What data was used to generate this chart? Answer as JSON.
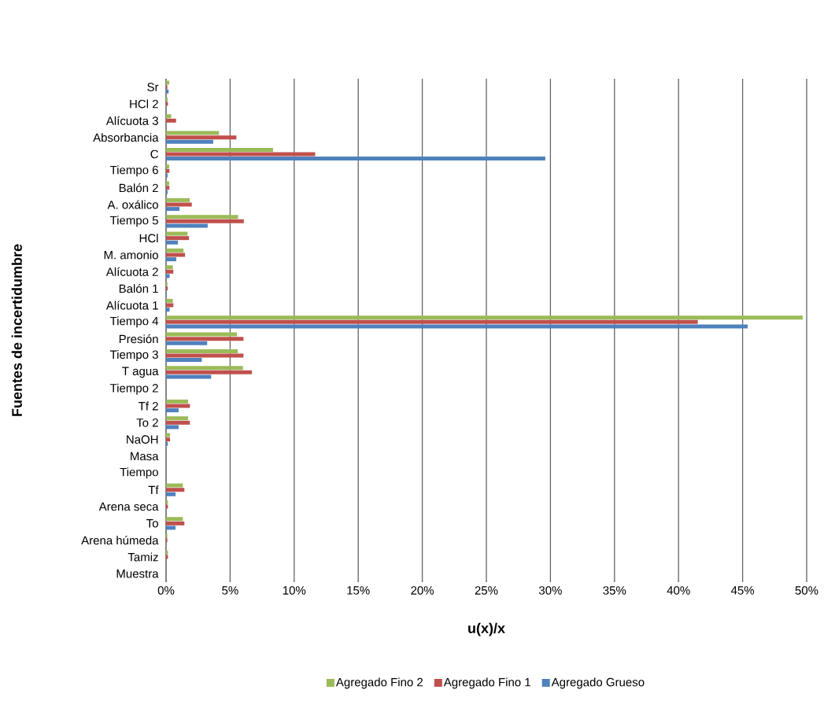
{
  "chart_data": {
    "type": "bar",
    "orientation": "horizontal",
    "xlabel": "u(x)/x",
    "ylabel": "Fuentes de incertidumbre",
    "categories": [
      "Sr",
      "HCl 2",
      "Alícuota 3",
      "Absorbancia",
      "C",
      "Tiempo 6",
      "Balón 2",
      "A. oxálico",
      "Tiempo 5",
      "HCl",
      "M. amonio",
      "Alícuota 2",
      "Balón 1",
      "Alícuota 1",
      "Tiempo 4",
      "Presión",
      "Tiempo 3",
      "T agua",
      "Tiempo 2",
      "Tf 2",
      "To 2",
      "NaOH",
      "Masa",
      "Tiempo",
      "Tf",
      "Arena seca",
      "To",
      "Arena húmeda",
      "Tamiz",
      "Muestra"
    ],
    "series": [
      {
        "name": "Agregado Fino 2",
        "color": "#9bbb59",
        "values": [
          0.25,
          0.12,
          0.4,
          4.13,
          8.35,
          0.24,
          0.24,
          1.85,
          5.62,
          1.67,
          1.36,
          0.53,
          0.11,
          0.53,
          49.7,
          5.53,
          5.6,
          6.0,
          0,
          1.72,
          1.72,
          0.31,
          0,
          0,
          1.31,
          0.15,
          1.31,
          0.1,
          0.15,
          0
        ]
      },
      {
        "name": "Agregado Fino 1",
        "color": "#c0504d",
        "values": [
          0.1,
          0.15,
          0.78,
          5.49,
          11.64,
          0.26,
          0.26,
          2.01,
          6.07,
          1.79,
          1.48,
          0.57,
          0.13,
          0.57,
          41.5,
          6.04,
          6.04,
          6.7,
          0,
          1.86,
          1.86,
          0.31,
          0,
          0,
          1.43,
          0.15,
          1.43,
          0.1,
          0.15,
          0
        ]
      },
      {
        "name": "Agregado Grueso",
        "color": "#4f81bd",
        "values": [
          0.2,
          0,
          0,
          3.68,
          29.6,
          0.12,
          0.12,
          1.05,
          3.25,
          0.93,
          0.8,
          0.28,
          0.05,
          0.28,
          45.4,
          3.21,
          2.79,
          3.52,
          0,
          0.98,
          0.98,
          0.14,
          0,
          0,
          0.74,
          0,
          0.74,
          0,
          0,
          0
        ]
      }
    ],
    "xlim": [
      0,
      50
    ],
    "xticks": [
      {
        "value": 0,
        "label": "0%"
      },
      {
        "value": 5,
        "label": "5%"
      },
      {
        "value": 10,
        "label": "10%"
      },
      {
        "value": 15,
        "label": "15%"
      },
      {
        "value": 20,
        "label": "20%"
      },
      {
        "value": 25,
        "label": "25%"
      },
      {
        "value": 30,
        "label": "30%"
      },
      {
        "value": 35,
        "label": "35%"
      },
      {
        "value": 40,
        "label": "40%"
      },
      {
        "value": 45,
        "label": "45%"
      },
      {
        "value": 50,
        "label": "50%"
      }
    ],
    "grid": "x",
    "legend": "bottom"
  }
}
